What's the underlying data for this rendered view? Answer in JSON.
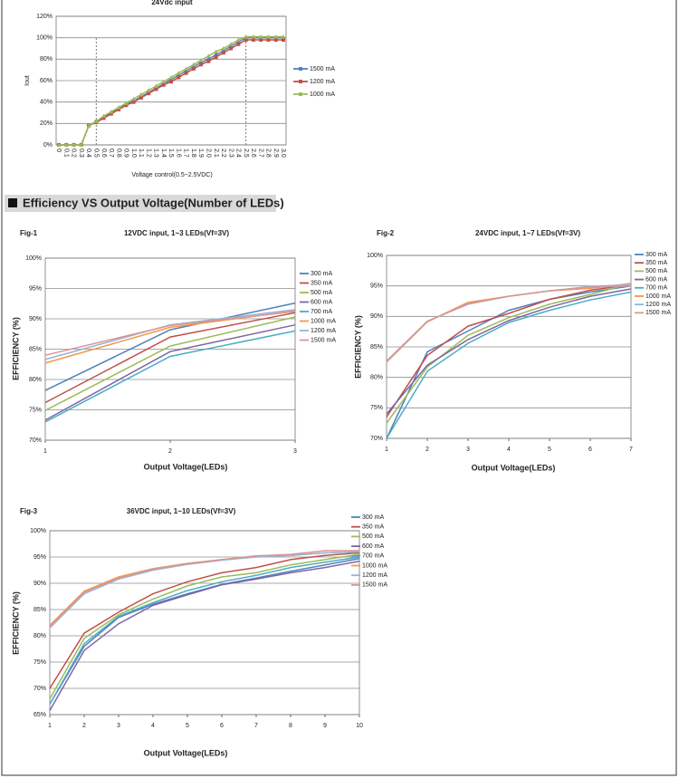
{
  "section_title": "Efficiency VS Output Voltage(Number of LEDs)",
  "chart_data": [
    {
      "type": "line",
      "title": "24Vdc input",
      "ylabel": "Iout",
      "xlabel": "Voltage control(0.5~2.5VDC)",
      "categories": [
        "0",
        "0.1",
        "0.2",
        "0.3",
        "0.4",
        "0.5",
        "0.6",
        "0.7",
        "0.8",
        "0.9",
        "1.0",
        "1.1",
        "1.2",
        "1.3",
        "1.4",
        "1.5",
        "1.6",
        "1.7",
        "1.8",
        "1.9",
        "2.0",
        "2.1",
        "2.2",
        "2.3",
        "2.4",
        "2.5",
        "2.6",
        "2.7",
        "2.8",
        "2.9",
        "3.0"
      ],
      "ylim": [
        0,
        120
      ],
      "yticks": [
        {
          "value": 0,
          "label": "0%"
        },
        {
          "value": 20,
          "label": "20%"
        },
        {
          "value": 40,
          "label": "40%"
        },
        {
          "value": 60,
          "label": "60%"
        },
        {
          "value": 80,
          "label": "80%"
        },
        {
          "value": 100,
          "label": "100%"
        },
        {
          "value": 120,
          "label": "120%"
        }
      ],
      "grid": true,
      "series": [
        {
          "name": "1500 mA",
          "color": "#4f81bd",
          "marker": "diamond",
          "values": [
            0,
            0,
            0,
            0,
            18,
            22,
            26,
            30,
            34,
            38,
            41,
            45,
            49,
            53,
            57,
            61,
            65,
            69,
            73,
            77,
            80,
            84,
            88,
            92,
            96,
            100,
            100,
            100,
            100,
            100,
            100
          ]
        },
        {
          "name": "1200 mA",
          "color": "#c0504d",
          "marker": "square",
          "values": [
            0,
            0,
            0,
            0,
            18,
            21,
            25,
            29,
            33,
            37,
            40,
            44,
            48,
            52,
            56,
            59,
            63,
            67,
            71,
            75,
            78,
            82,
            86,
            90,
            94,
            98,
            98,
            98,
            98,
            98,
            98
          ]
        },
        {
          "name": "1000 mA",
          "color": "#9bbb59",
          "marker": "triangle",
          "values": [
            0,
            0,
            0,
            0,
            18,
            22,
            27,
            31,
            35,
            39,
            43,
            47,
            51,
            55,
            59,
            63,
            67,
            71,
            75,
            79,
            83,
            87,
            90,
            94,
            98,
            101,
            101,
            101,
            101,
            101,
            101
          ]
        }
      ]
    },
    {
      "type": "line",
      "label": "Fig-1",
      "title": "12VDC input, 1~3 LEDs(Vf=3V)",
      "ylabel": "EFFICIENCY (%)",
      "xlabel": "Output Voltage(LEDs)",
      "x": [
        1,
        2,
        3
      ],
      "xlim": [
        1,
        3
      ],
      "xticks": [
        1,
        2,
        3
      ],
      "ylim": [
        70,
        100
      ],
      "yticks": [
        {
          "value": 70,
          "label": "70%"
        },
        {
          "value": 75,
          "label": "75%"
        },
        {
          "value": 80,
          "label": "80%"
        },
        {
          "value": 85,
          "label": "85%"
        },
        {
          "value": 90,
          "label": "90%"
        },
        {
          "value": 95,
          "label": "95%"
        },
        {
          "value": 100,
          "label": "100%"
        }
      ],
      "grid": true,
      "series": [
        {
          "name": "300 mA",
          "color": "#4f81bd",
          "values": [
            78.2,
            88.2,
            92.6
          ]
        },
        {
          "name": "350 mA",
          "color": "#c0504d",
          "values": [
            76.2,
            87.0,
            91.0
          ]
        },
        {
          "name": "500 mA",
          "color": "#9bbb59",
          "values": [
            74.9,
            85.5,
            90.3
          ]
        },
        {
          "name": "600 mA",
          "color": "#8064a2",
          "values": [
            73.3,
            84.6,
            89.0
          ]
        },
        {
          "name": "700 mA",
          "color": "#4bacc6",
          "values": [
            73.0,
            83.8,
            88.0
          ]
        },
        {
          "name": "1000 mA",
          "color": "#f79646",
          "values": [
            82.7,
            88.6,
            91.3
          ]
        },
        {
          "name": "1200 mA",
          "color": "#95b3d7",
          "values": [
            83.3,
            89.0,
            91.5
          ]
        },
        {
          "name": "1500 mA",
          "color": "#d99694",
          "values": [
            84.0,
            88.9,
            91.2
          ]
        }
      ]
    },
    {
      "type": "line",
      "label": "Fig-2",
      "title": "24VDC input, 1~7 LEDs(Vf=3V)",
      "ylabel": "EFFICIENCY (%)",
      "xlabel": "Output Voltage(LEDs)",
      "x": [
        1,
        2,
        3,
        4,
        5,
        6,
        7
      ],
      "xlim": [
        1,
        7
      ],
      "xticks": [
        1,
        2,
        3,
        4,
        5,
        6,
        7
      ],
      "ylim": [
        70,
        100
      ],
      "yticks": [
        {
          "value": 70,
          "label": "70%"
        },
        {
          "value": 75,
          "label": "75%"
        },
        {
          "value": 80,
          "label": "80%"
        },
        {
          "value": 85,
          "label": "85%"
        },
        {
          "value": 90,
          "label": "90%"
        },
        {
          "value": 95,
          "label": "95%"
        },
        {
          "value": 100,
          "label": "100%"
        }
      ],
      "grid": true,
      "series": [
        {
          "name": "300 mA",
          "color": "#4f81bd",
          "values": [
            70,
            84.2,
            87.6,
            91,
            92.8,
            94,
            95
          ]
        },
        {
          "name": "350 mA",
          "color": "#c0504d",
          "values": [
            73.5,
            83.6,
            88.4,
            90.5,
            92.8,
            94.3,
            95.2
          ]
        },
        {
          "name": "500 mA",
          "color": "#9bbb59",
          "values": [
            72.5,
            81.7,
            86.9,
            89.8,
            92,
            93.6,
            95.4
          ]
        },
        {
          "name": "600 mA",
          "color": "#8064a2",
          "values": [
            74,
            82,
            86.2,
            89.3,
            91.5,
            93.3,
            94.5
          ]
        },
        {
          "name": "700 mA",
          "color": "#4bacc6",
          "values": [
            70,
            81,
            85.6,
            89,
            91,
            92.7,
            94
          ]
        },
        {
          "name": "1000 mA",
          "color": "#f79646",
          "values": [
            82.5,
            89.1,
            92.3,
            93.3,
            94.2,
            94.6,
            95.4
          ]
        },
        {
          "name": "1200 mA",
          "color": "#95b3d7",
          "values": [
            82.7,
            89.2,
            92,
            93.3,
            94.2,
            94.9,
            95.2
          ]
        },
        {
          "name": "1500 mA",
          "color": "#d99694",
          "values": [
            82.6,
            89.2,
            92.1,
            93.3,
            94.2,
            94.8,
            95.0
          ]
        }
      ]
    },
    {
      "type": "line",
      "label": "Fig-3",
      "title": "36VDC input, 1~10 LEDs(Vf=3V)",
      "ylabel": "EFFICIENCY (%)",
      "xlabel": "Output Voltage(LEDs)",
      "x": [
        1,
        2,
        3,
        4,
        5,
        6,
        7,
        8,
        9,
        10
      ],
      "xlim": [
        1,
        10
      ],
      "xticks": [
        1,
        2,
        3,
        4,
        5,
        6,
        7,
        8,
        9,
        10
      ],
      "ylim": [
        65,
        100
      ],
      "yticks": [
        {
          "value": 65,
          "label": "65%"
        },
        {
          "value": 70,
          "label": "70%"
        },
        {
          "value": 75,
          "label": "75%"
        },
        {
          "value": 80,
          "label": "80%"
        },
        {
          "value": 85,
          "label": "85%"
        },
        {
          "value": 90,
          "label": "90%"
        },
        {
          "value": 95,
          "label": "95%"
        },
        {
          "value": 100,
          "label": "100%"
        }
      ],
      "grid": true,
      "series": [
        {
          "name": "300 mA",
          "color": "#4f81bd",
          "values": [
            67,
            78,
            83.5,
            86,
            88,
            89.8,
            91,
            92.3,
            93.5,
            94.7
          ]
        },
        {
          "name": "350 mA",
          "color": "#c0504d",
          "values": [
            70,
            80.5,
            84.5,
            88,
            90.3,
            92,
            93,
            94.5,
            95.3,
            95.8
          ]
        },
        {
          "name": "500 mA",
          "color": "#9bbb59",
          "values": [
            68,
            79.5,
            84,
            87,
            89.5,
            91.2,
            92,
            93.5,
            94.5,
            95.5
          ]
        },
        {
          "name": "600 mA",
          "color": "#8064a2",
          "values": [
            65.8,
            77.2,
            82.3,
            85.8,
            87.8,
            89.7,
            90.8,
            92,
            93,
            94.2
          ]
        },
        {
          "name": "700 mA",
          "color": "#4bacc6",
          "values": [
            67,
            78.5,
            83.7,
            86.3,
            88.6,
            90.3,
            91.5,
            93,
            94,
            95
          ]
        },
        {
          "name": "1000 mA",
          "color": "#f79646",
          "values": [
            82,
            88.5,
            91.2,
            92.8,
            93.8,
            94.5,
            95.2,
            95.3,
            95.8,
            96
          ]
        },
        {
          "name": "1200 mA",
          "color": "#95b3d7",
          "values": [
            81.5,
            88,
            90.8,
            92.5,
            93.6,
            94.4,
            95,
            95.3,
            95.8,
            96
          ]
        },
        {
          "name": "1500 mA",
          "color": "#d99694",
          "values": [
            81.8,
            88.3,
            91,
            92.7,
            93.7,
            94.5,
            95.2,
            95.5,
            96.2,
            96.2
          ]
        }
      ]
    }
  ]
}
